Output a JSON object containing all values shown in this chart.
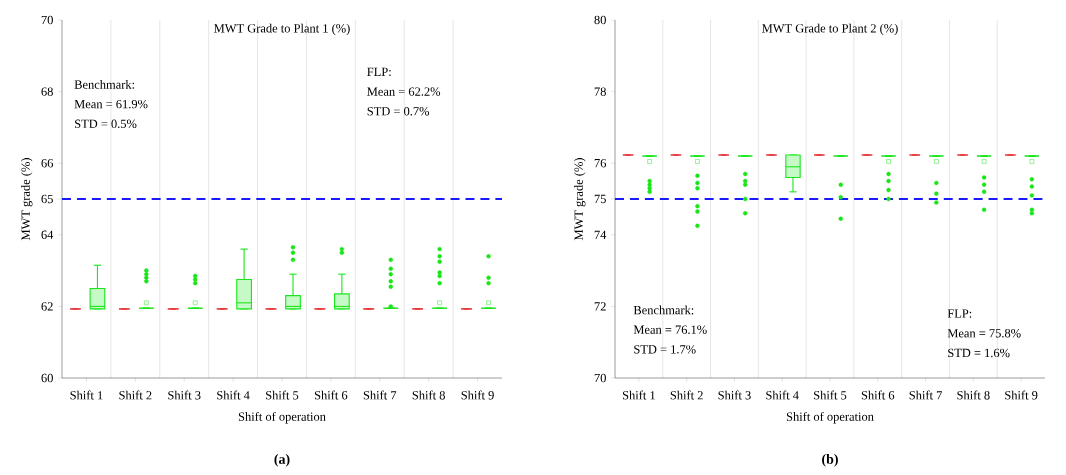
{
  "chart_data": [
    {
      "type": "box",
      "title": "MWT Grade to Plant 1 (%)",
      "xlabel": "Shift of operation",
      "ylabel": "MWT grade (%)",
      "categories": [
        "Shift 1",
        "Shift 2",
        "Shift 3",
        "Shift 4",
        "Shift 5",
        "Shift 6",
        "Shift 7",
        "Shift 8",
        "Shift 9"
      ],
      "ylim": [
        60,
        70
      ],
      "yticks": [
        60,
        62,
        64,
        65,
        66,
        68,
        70
      ],
      "grid": "x",
      "series": [
        {
          "color": "#e8383d",
          "boxes": [
            {
              "low": 61.93,
              "q1": 61.93,
              "median": 61.93,
              "q3": 61.93,
              "high": 61.93
            },
            {
              "low": 61.93,
              "q1": 61.93,
              "median": 61.93,
              "q3": 61.93,
              "high": 61.93
            },
            {
              "low": 61.93,
              "q1": 61.93,
              "median": 61.93,
              "q3": 61.93,
              "high": 61.93
            },
            {
              "low": 61.93,
              "q1": 61.93,
              "median": 61.93,
              "q3": 61.93,
              "high": 61.93
            },
            {
              "low": 61.93,
              "q1": 61.93,
              "median": 61.93,
              "q3": 61.93,
              "high": 61.93
            },
            {
              "low": 61.93,
              "q1": 61.93,
              "median": 61.93,
              "q3": 61.93,
              "high": 61.93
            },
            {
              "low": 61.93,
              "q1": 61.93,
              "median": 61.93,
              "q3": 61.93,
              "high": 61.93
            },
            {
              "low": 61.93,
              "q1": 61.93,
              "median": 61.93,
              "q3": 61.93,
              "high": 61.93
            },
            {
              "low": 61.93,
              "q1": 61.93,
              "median": 61.93,
              "q3": 61.93,
              "high": 61.93
            }
          ]
        },
        {
          "color": "#19e619",
          "boxes": [
            {
              "low": 61.93,
              "q1": 61.93,
              "median": 62.0,
              "q3": 62.5,
              "high": 63.15
            },
            {
              "low": 61.95,
              "q1": 61.95,
              "median": 61.95,
              "q3": 61.95,
              "high": 61.95,
              "mean": 62.1,
              "outliers": [
                62.7,
                62.8,
                62.9,
                63.0
              ]
            },
            {
              "low": 61.95,
              "q1": 61.95,
              "median": 61.95,
              "q3": 61.95,
              "high": 61.95,
              "mean": 62.1,
              "outliers": [
                62.65,
                62.75,
                62.85
              ]
            },
            {
              "low": 61.93,
              "q1": 61.93,
              "median": 62.1,
              "q3": 62.75,
              "high": 63.6
            },
            {
              "low": 61.93,
              "q1": 61.93,
              "median": 62.0,
              "q3": 62.3,
              "high": 62.9,
              "outliers": [
                63.3,
                63.5,
                63.65
              ]
            },
            {
              "low": 61.93,
              "q1": 61.93,
              "median": 62.0,
              "q3": 62.35,
              "high": 62.9,
              "outliers": [
                63.5,
                63.6
              ]
            },
            {
              "low": 61.95,
              "q1": 61.95,
              "median": 61.95,
              "q3": 61.95,
              "high": 61.95,
              "outliers": [
                62.0,
                62.55,
                62.7,
                62.9,
                63.05,
                63.3
              ]
            },
            {
              "low": 61.95,
              "q1": 61.95,
              "median": 61.95,
              "q3": 61.95,
              "high": 61.95,
              "mean": 62.1,
              "outliers": [
                62.65,
                62.85,
                62.95,
                63.25,
                63.4,
                63.6
              ]
            },
            {
              "low": 61.95,
              "q1": 61.95,
              "median": 61.95,
              "q3": 61.95,
              "high": 61.95,
              "mean": 62.1,
              "outliers": [
                62.65,
                62.8,
                63.4
              ]
            }
          ]
        }
      ],
      "ref_lines": [
        {
          "axis": "y",
          "value": 65,
          "color": "#1a1aff",
          "line_style": "dashed"
        }
      ],
      "annotations": [
        "Benchmark:",
        "Mean = 61.9%",
        "STD = 0.5%",
        "FLP:",
        "Mean = 62.2%",
        "STD = 0.7%",
        "(a)"
      ]
    },
    {
      "type": "box",
      "title": "MWT Grade to Plant 2 (%)",
      "xlabel": "Shift of operation",
      "ylabel": "MWT grade (%)",
      "categories": [
        "Shift 1",
        "Shift 2",
        "Shift 3",
        "Shift 4",
        "Shift 5",
        "Shift 6",
        "Shift 7",
        "Shift 8",
        "Shift 9"
      ],
      "ylim": [
        70,
        80
      ],
      "yticks": [
        70,
        72,
        74,
        75,
        76,
        78,
        80
      ],
      "grid": "x",
      "series": [
        {
          "color": "#e8383d",
          "boxes": [
            {
              "low": 76.23,
              "q1": 76.23,
              "median": 76.23,
              "q3": 76.23,
              "high": 76.23
            },
            {
              "low": 76.23,
              "q1": 76.23,
              "median": 76.23,
              "q3": 76.23,
              "high": 76.23
            },
            {
              "low": 76.23,
              "q1": 76.23,
              "median": 76.23,
              "q3": 76.23,
              "high": 76.23
            },
            {
              "low": 76.23,
              "q1": 76.23,
              "median": 76.23,
              "q3": 76.23,
              "high": 76.23
            },
            {
              "low": 76.23,
              "q1": 76.23,
              "median": 76.23,
              "q3": 76.23,
              "high": 76.23
            },
            {
              "low": 76.23,
              "q1": 76.23,
              "median": 76.23,
              "q3": 76.23,
              "high": 76.23
            },
            {
              "low": 76.23,
              "q1": 76.23,
              "median": 76.23,
              "q3": 76.23,
              "high": 76.23
            },
            {
              "low": 76.23,
              "q1": 76.23,
              "median": 76.23,
              "q3": 76.23,
              "high": 76.23
            },
            {
              "low": 76.23,
              "q1": 76.23,
              "median": 76.23,
              "q3": 76.23,
              "high": 76.23
            }
          ]
        },
        {
          "color": "#19e619",
          "boxes": [
            {
              "low": 76.2,
              "q1": 76.2,
              "median": 76.2,
              "q3": 76.2,
              "high": 76.2,
              "mean": 76.05,
              "outliers": [
                75.2,
                75.3,
                75.4,
                75.5
              ]
            },
            {
              "low": 76.2,
              "q1": 76.2,
              "median": 76.2,
              "q3": 76.2,
              "high": 76.2,
              "mean": 76.05,
              "outliers": [
                74.25,
                74.65,
                74.8,
                75.3,
                75.45,
                75.65
              ]
            },
            {
              "low": 76.2,
              "q1": 76.2,
              "median": 76.2,
              "q3": 76.2,
              "high": 76.2,
              "outliers": [
                74.6,
                75.0,
                75.4,
                75.5,
                75.7
              ]
            },
            {
              "low": 75.2,
              "q1": 75.6,
              "median": 75.9,
              "q3": 76.23,
              "high": 76.23
            },
            {
              "low": 76.2,
              "q1": 76.2,
              "median": 76.2,
              "q3": 76.2,
              "high": 76.2,
              "outliers": [
                74.45,
                75.05,
                75.4
              ]
            },
            {
              "low": 76.2,
              "q1": 76.2,
              "median": 76.2,
              "q3": 76.2,
              "high": 76.2,
              "mean": 76.05,
              "outliers": [
                75.0,
                75.25,
                75.5,
                75.7
              ]
            },
            {
              "low": 76.2,
              "q1": 76.2,
              "median": 76.2,
              "q3": 76.2,
              "high": 76.2,
              "mean": 76.05,
              "outliers": [
                74.9,
                75.15,
                75.45
              ]
            },
            {
              "low": 76.2,
              "q1": 76.2,
              "median": 76.2,
              "q3": 76.2,
              "high": 76.2,
              "mean": 76.05,
              "outliers": [
                74.7,
                75.2,
                75.4,
                75.6
              ]
            },
            {
              "low": 76.2,
              "q1": 76.2,
              "median": 76.2,
              "q3": 76.2,
              "high": 76.2,
              "mean": 76.05,
              "outliers": [
                74.6,
                74.7,
                75.1,
                75.35,
                75.55
              ]
            }
          ]
        }
      ],
      "ref_lines": [
        {
          "axis": "y",
          "value": 75,
          "color": "#1a1aff",
          "line_style": "dashed"
        }
      ],
      "annotations": [
        "Benchmark:",
        "Mean = 76.1%",
        "STD = 1.7%",
        "FLP:",
        "Mean = 75.8%",
        "STD = 1.6%",
        "(b)"
      ]
    }
  ]
}
